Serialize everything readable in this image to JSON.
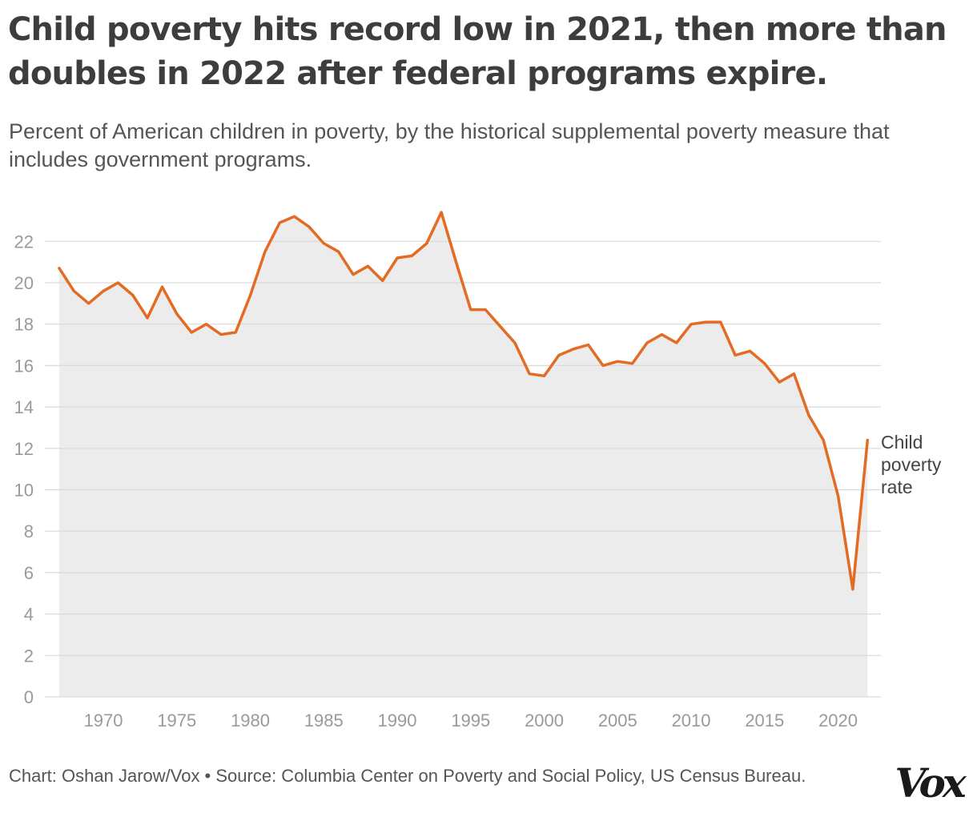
{
  "header": {
    "title": "Child poverty hits record low in 2021, then more than doubles in 2022 after federal programs expire.",
    "subtitle": "Percent of American children in poverty, by the historical supplemental poverty measure that includes government programs."
  },
  "footer": {
    "source": "Chart: Oshan Jarow/Vox • Source: Columbia Center on Poverty and Social Policy, US Census Bureau."
  },
  "logo": {
    "text": "Vox"
  },
  "colors": {
    "line": "#e36b23",
    "area": "#ececec",
    "grid": "#d9d9d9",
    "tick_text": "#9a9a9a",
    "label_text": "#444444"
  },
  "chart_data": {
    "type": "area",
    "x": [
      1967,
      1968,
      1969,
      1970,
      1971,
      1972,
      1973,
      1974,
      1975,
      1976,
      1977,
      1978,
      1979,
      1980,
      1981,
      1982,
      1983,
      1984,
      1985,
      1986,
      1987,
      1988,
      1989,
      1990,
      1991,
      1992,
      1993,
      1994,
      1995,
      1996,
      1997,
      1998,
      1999,
      2000,
      2001,
      2002,
      2003,
      2004,
      2005,
      2006,
      2007,
      2008,
      2009,
      2010,
      2011,
      2012,
      2013,
      2014,
      2015,
      2016,
      2017,
      2018,
      2019,
      2020,
      2021,
      2022
    ],
    "series": [
      {
        "name": "Child poverty rate",
        "values": [
          20.7,
          19.6,
          19.0,
          19.6,
          20.0,
          19.4,
          18.3,
          19.8,
          18.5,
          17.6,
          18.0,
          17.5,
          17.6,
          19.4,
          21.5,
          22.9,
          23.2,
          22.7,
          21.9,
          21.5,
          20.4,
          20.8,
          20.1,
          21.2,
          21.3,
          21.9,
          23.4,
          21.0,
          18.7,
          18.7,
          17.9,
          17.1,
          15.6,
          15.5,
          16.5,
          16.8,
          17.0,
          16.0,
          16.2,
          16.1,
          17.1,
          17.5,
          17.1,
          18.0,
          18.1,
          18.1,
          16.5,
          16.7,
          16.1,
          15.2,
          15.6,
          13.6,
          12.4,
          9.7,
          5.2,
          12.4
        ]
      }
    ],
    "series_label": "Child poverty rate",
    "ylim": [
      0,
      23.5
    ],
    "xlim": [
      1967,
      2022
    ],
    "yticks": [
      0,
      2,
      4,
      6,
      8,
      10,
      12,
      14,
      16,
      18,
      20,
      22
    ],
    "xticks": [
      1970,
      1975,
      1980,
      1985,
      1990,
      1995,
      2000,
      2005,
      2010,
      2015,
      2020
    ],
    "xlabel": "",
    "ylabel": "",
    "grid": true,
    "legend": "inline label at end of line"
  }
}
